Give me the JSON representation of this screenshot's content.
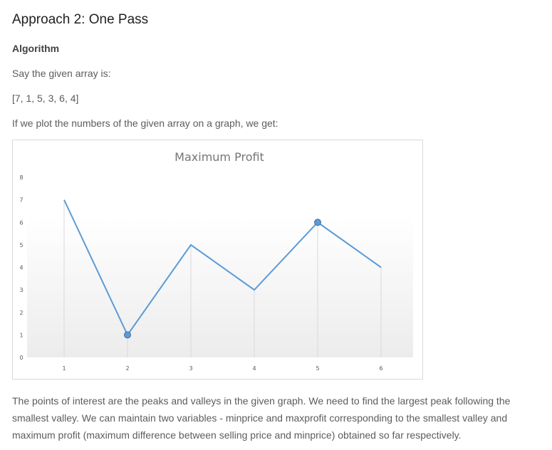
{
  "heading": "Approach 2: One Pass",
  "subheading": "Algorithm",
  "paragraphs": {
    "intro": "Say the given array is:",
    "array": "[7, 1, 5, 3, 6, 4]",
    "plot_intro": "If we plot the numbers of the given array on a graph, we get:",
    "explanation": "The points of interest are the peaks and valleys in the given graph. We need to find the largest peak following the smallest valley. We can maintain two variables - minprice and maxprofit corresponding to the smallest valley and maximum profit (maximum difference between selling price and minprice) obtained so far respectively."
  },
  "chart_data": {
    "type": "line",
    "title": "Maximum Profit",
    "x": [
      1,
      2,
      3,
      4,
      5,
      6
    ],
    "values": [
      7,
      1,
      5,
      3,
      6,
      4
    ],
    "highlighted_points": [
      {
        "x": 2,
        "y": 1
      },
      {
        "x": 5,
        "y": 6
      }
    ],
    "xlabel": "",
    "ylabel": "",
    "xticks": [
      "1",
      "2",
      "3",
      "4",
      "5",
      "6"
    ],
    "yticks": [
      "0",
      "1",
      "2",
      "3",
      "4",
      "5",
      "6",
      "7",
      "8"
    ],
    "ylim": [
      0,
      8
    ],
    "grid": "vertical",
    "line_color": "#5b9bd5",
    "marker_color": "#5b9bd5"
  }
}
